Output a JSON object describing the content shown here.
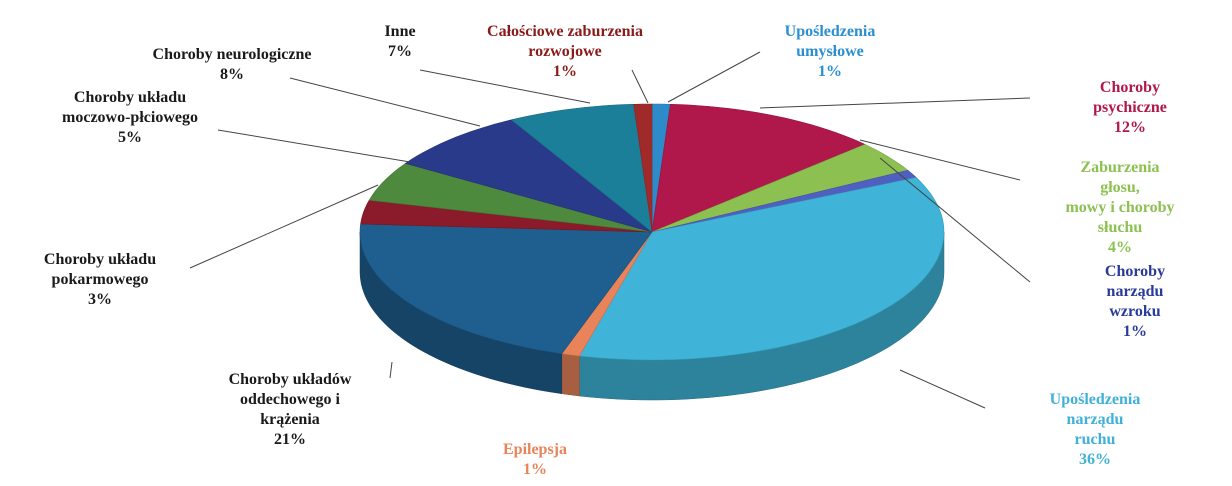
{
  "chart_data": {
    "type": "pie3d",
    "categories": [
      "Upośledzenia\numysłowe",
      "Choroby psychiczne",
      "Zaburzenia głosu,\nmowy i choroby słuchu",
      "Choroby narządu\nwzroku",
      "Upośledzenia narządu\nruchu",
      "Epilepsja",
      "Choroby układów\noddechowego i\nkrążenia",
      "Choroby układu\npokarmowego",
      "Choroby układu\nmoczowo-płciowego",
      "Choroby neurologiczne",
      "Inne",
      "Całościowe zaburzenia\nrozwojowe"
    ],
    "values": [
      1,
      12,
      4,
      1,
      36,
      1,
      21,
      3,
      5,
      8,
      7,
      1
    ],
    "value_labels": [
      "1%",
      "12%",
      "4%",
      "1%",
      "36%",
      "1%",
      "21%",
      "3%",
      "5%",
      "8%",
      "7%",
      "1%"
    ],
    "colors": [
      "#2e8bc9",
      "#b0174a",
      "#8cc152",
      "#5060c0",
      "#3fb4d8",
      "#e8835a",
      "#1f5f8f",
      "#8b1a2a",
      "#4e8a3e",
      "#2a3a8a",
      "#1c7f9a",
      "#a02a2a"
    ]
  }
}
